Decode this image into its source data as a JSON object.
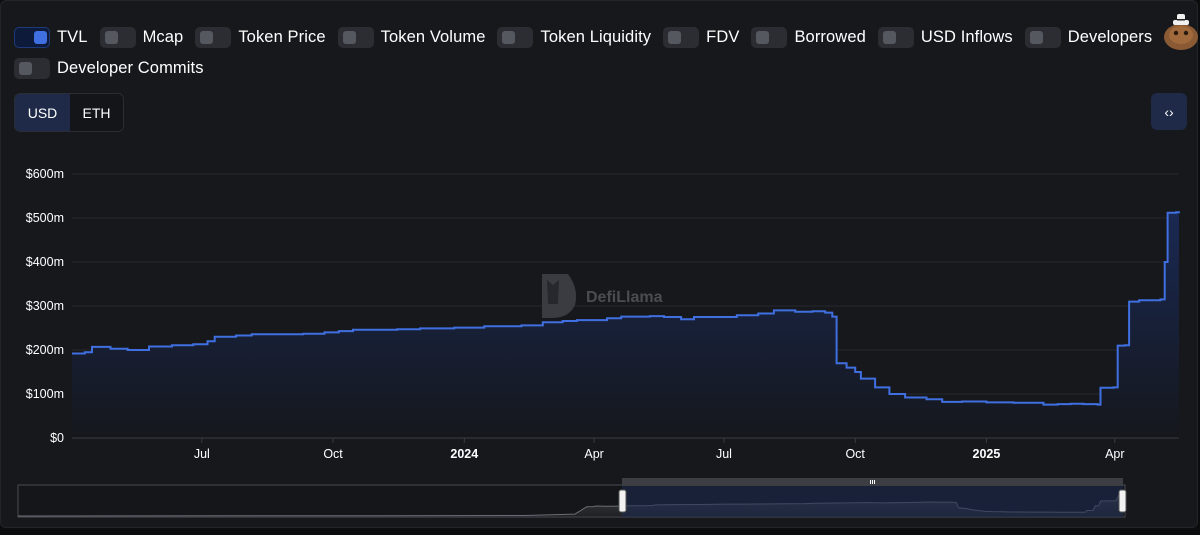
{
  "toggles": [
    {
      "label": "TVL",
      "on": true
    },
    {
      "label": "Mcap",
      "on": false
    },
    {
      "label": "Token Price",
      "on": false
    },
    {
      "label": "Token Volume",
      "on": false
    },
    {
      "label": "Token Liquidity",
      "on": false
    },
    {
      "label": "FDV",
      "on": false
    },
    {
      "label": "Borrowed",
      "on": false
    },
    {
      "label": "USD Inflows",
      "on": false
    },
    {
      "label": "Developers",
      "on": false
    },
    {
      "label": "Developer Commits",
      "on": false
    }
  ],
  "currency": {
    "options": [
      "USD",
      "ETH"
    ],
    "selected": "USD"
  },
  "embed_icon": "code-icon",
  "colors": {
    "line": "#3f6fe0",
    "area_top": "#1a2a56",
    "background": "#17181c",
    "grid": "#26282e"
  },
  "watermark": "DefiLlama",
  "chart_data": {
    "type": "area",
    "series": [
      {
        "name": "TVL",
        "unit": "USD millions"
      }
    ],
    "y_ticks": [
      {
        "value": 0,
        "label": "$0"
      },
      {
        "value": 100,
        "label": "$100m"
      },
      {
        "value": 200,
        "label": "$200m"
      },
      {
        "value": 300,
        "label": "$300m"
      },
      {
        "value": 400,
        "label": "$400m"
      },
      {
        "value": 500,
        "label": "$500m"
      },
      {
        "value": 600,
        "label": "$600m"
      }
    ],
    "x_ticks": [
      {
        "date": "2023-07",
        "label": "Jul",
        "bold": false
      },
      {
        "date": "2023-10",
        "label": "Oct",
        "bold": false
      },
      {
        "date": "2024-01",
        "label": "2024",
        "bold": true
      },
      {
        "date": "2024-04",
        "label": "Apr",
        "bold": false
      },
      {
        "date": "2024-07",
        "label": "Jul",
        "bold": false
      },
      {
        "date": "2024-10",
        "label": "Oct",
        "bold": false
      },
      {
        "date": "2025-01",
        "label": "2025",
        "bold": true
      },
      {
        "date": "2025-04",
        "label": "Apr",
        "bold": false
      }
    ],
    "xlim": [
      "2023-04-01",
      "2025-05-16"
    ],
    "ylim": [
      0,
      600
    ],
    "grid": true,
    "points": [
      [
        "2023-04-01",
        192
      ],
      [
        "2023-04-10",
        195
      ],
      [
        "2023-04-15",
        207
      ],
      [
        "2023-04-28",
        203
      ],
      [
        "2023-05-10",
        200
      ],
      [
        "2023-05-25",
        208
      ],
      [
        "2023-06-10",
        211
      ],
      [
        "2023-06-25",
        213
      ],
      [
        "2023-07-05",
        220
      ],
      [
        "2023-07-10",
        230
      ],
      [
        "2023-07-25",
        233
      ],
      [
        "2023-08-05",
        236
      ],
      [
        "2023-09-10",
        237
      ],
      [
        "2023-09-25",
        240
      ],
      [
        "2023-10-05",
        243
      ],
      [
        "2023-10-15",
        246
      ],
      [
        "2023-11-15",
        247
      ],
      [
        "2023-12-01",
        249
      ],
      [
        "2023-12-25",
        251
      ],
      [
        "2024-01-15",
        254
      ],
      [
        "2024-02-10",
        256
      ],
      [
        "2024-02-25",
        263
      ],
      [
        "2024-03-10",
        266
      ],
      [
        "2024-03-20",
        268
      ],
      [
        "2024-04-10",
        272
      ],
      [
        "2024-04-20",
        276
      ],
      [
        "2024-05-10",
        277
      ],
      [
        "2024-05-20",
        275
      ],
      [
        "2024-06-01",
        270
      ],
      [
        "2024-06-10",
        275
      ],
      [
        "2024-07-10",
        279
      ],
      [
        "2024-07-25",
        283
      ],
      [
        "2024-08-05",
        290
      ],
      [
        "2024-08-20",
        287
      ],
      [
        "2024-09-01",
        288
      ],
      [
        "2024-09-10",
        285
      ],
      [
        "2024-09-15",
        276
      ],
      [
        "2024-09-18",
        170
      ],
      [
        "2024-09-25",
        160
      ],
      [
        "2024-10-01",
        150
      ],
      [
        "2024-10-05",
        135
      ],
      [
        "2024-10-15",
        115
      ],
      [
        "2024-10-25",
        100
      ],
      [
        "2024-11-05",
        92
      ],
      [
        "2024-11-20",
        88
      ],
      [
        "2024-12-01",
        82
      ],
      [
        "2024-12-15",
        83
      ],
      [
        "2025-01-01",
        81
      ],
      [
        "2025-01-20",
        80
      ],
      [
        "2025-02-01",
        80
      ],
      [
        "2025-02-10",
        76
      ],
      [
        "2025-02-20",
        77
      ],
      [
        "2025-03-01",
        78
      ],
      [
        "2025-03-10",
        77
      ],
      [
        "2025-03-20",
        76
      ],
      [
        "2025-03-22",
        114
      ],
      [
        "2025-03-31",
        115
      ],
      [
        "2025-04-03",
        210
      ],
      [
        "2025-04-08",
        211
      ],
      [
        "2025-04-11",
        310
      ],
      [
        "2025-04-18",
        313
      ],
      [
        "2025-04-25",
        313
      ],
      [
        "2025-05-03",
        315
      ],
      [
        "2025-05-06",
        400
      ],
      [
        "2025-05-08",
        512
      ],
      [
        "2025-05-14",
        513
      ],
      [
        "2025-05-16",
        515
      ]
    ]
  }
}
